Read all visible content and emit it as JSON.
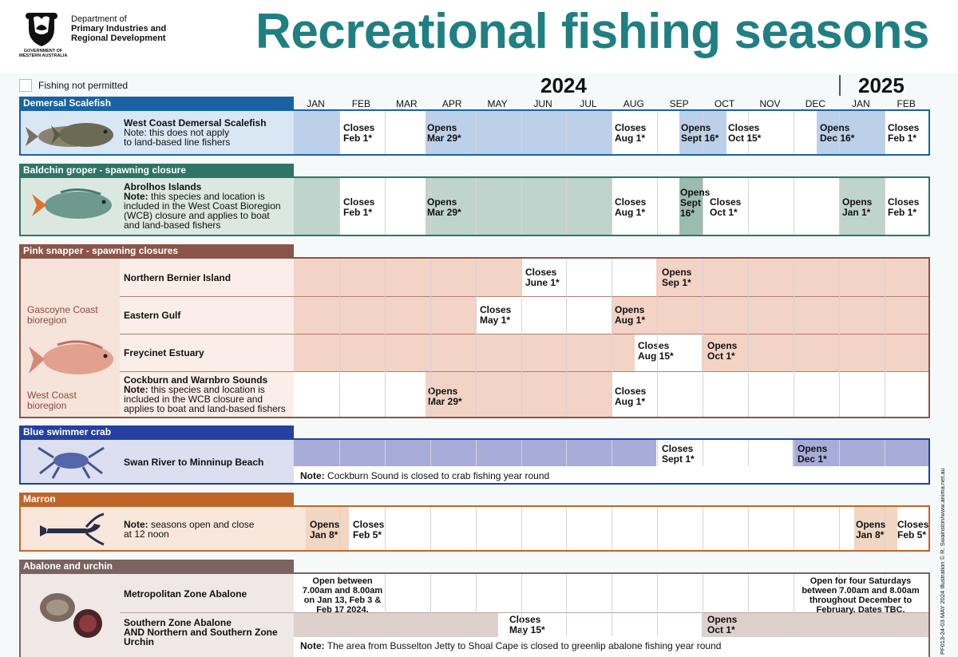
{
  "header": {
    "dept_line1": "Department of",
    "dept_line2": "Primary Industries and",
    "dept_line3": "Regional Development",
    "gov_line1": "GOVERNMENT OF",
    "gov_line2": "WESTERN AUSTRALIA",
    "title": "Recreational fishing seasons"
  },
  "legend": {
    "label": "Fishing not permitted"
  },
  "years": {
    "y1": "2024",
    "y2": "2025"
  },
  "months": [
    "JAN",
    "FEB",
    "MAR",
    "APR",
    "MAY",
    "JUN",
    "JUL",
    "AUG",
    "SEP",
    "OCT",
    "NOV",
    "DEC",
    "JAN",
    "FEB"
  ],
  "sections": {
    "demersal": {
      "title": "Demersal Scalefish",
      "color": "#1a62a3",
      "row_name": "West Coast Demersal Scalefish",
      "row_note1": "Note: this does not apply",
      "row_note2": "to land-based line fishers",
      "a1": "Closes\nFeb 1*",
      "a2": "Opens\nMar 29*",
      "a3": "Closes\nAug 1*",
      "a4": "Opens\nSept 16*",
      "a5": "Closes\nOct 15*",
      "a6": "Opens\nDec 16*",
      "a7": "Closes\nFeb 1*"
    },
    "baldchin": {
      "title": "Baldchin groper - spawning closure",
      "color": "#2e7565",
      "row_name": "Abrolhos Islands",
      "note_bold": "Note:",
      "note_rest": " this species and location is",
      "note_l2": "included in the West Coast Bioregion",
      "note_l3": "(WCB) closure and applies to boat",
      "note_l4": "and land-based fishers",
      "a1": "Closes\nFeb 1*",
      "a2": "Opens\nMar 29*",
      "a3": "Closes\nAug 1*",
      "a4": "Opens\nSept\n16*",
      "a5": "Closes\nOct 1*",
      "a6": "Opens\nJan 1*",
      "a7": "Closes\nFeb 1*"
    },
    "snapper": {
      "title": "Pink snapper - spawning closures",
      "color": "#8a5548",
      "group1": "Gascoyne Coast\nbioregion",
      "group2": "West Coast\nbioregion",
      "r1": "Northern Bernier Island",
      "r1a1": "Closes\nJune 1*",
      "r1a2": "Opens\nSep 1*",
      "r2": "Eastern Gulf",
      "r2a1": "Closes\nMay 1*",
      "r2a2": "Opens\nAug 1*",
      "r3": "Freycinet Estuary",
      "r3a1": "Closes\nAug 15*",
      "r3a2": "Opens\nOct 1*",
      "r4": "Cockburn and Warnbro Sounds",
      "r4_note_bold": "Note:",
      "r4_note_rest": " this species and location is",
      "r4_l2": "included in the WCB closure and",
      "r4_l3": "applies to boat and land-based fishers",
      "r4a1": "Opens\nMar 29*",
      "r4a2": "Closes\nAug 1*"
    },
    "crab": {
      "title": "Blue swimmer crab",
      "color": "#2540a0",
      "row_name": "Swan River to Minninup Beach",
      "a1": "Closes\nSept 1*",
      "a2": "Opens\nDec 1*",
      "note_bold": "Note:",
      "note_rest": " Cockburn Sound is closed to crab fishing year round"
    },
    "marron": {
      "title": "Marron",
      "color": "#c0652a",
      "note_bold": "Note:",
      "note_rest": " seasons open and close",
      "note_l2": "at 12 noon",
      "a1": "Opens\nJan 8*",
      "a2": "Closes\nFeb 5*",
      "a3": "Opens\nJan 8*",
      "a4": "Closes\nFeb 5*"
    },
    "abalone": {
      "title": "Abalone and urchin",
      "color": "#7a6360",
      "r1": "Metropolitan Zone Abalone",
      "r1a1": "Open between\n7.00am and 8.00am\non Jan 13, Feb 3 &\nFeb 17 2024.",
      "r1a2": "Open for four Saturdays\nbetween 7.00am and 8.00am\nthroughout December to\nFebruary. Dates TBC.",
      "r2_l1": "Southern Zone Abalone",
      "r2_l2": "AND Northern and Southern Zone",
      "r2_l3": "Urchin",
      "r2a1": "Closes\nMay 15*",
      "r2a2": "Opens\nOct 1*",
      "note_bold": "Note:",
      "note_rest": " The area from Busselton Jetty to Shoal Cape is closed to greenlip abalone fishing year round"
    }
  },
  "side_text": "PF013-24-03  MAY 2024  Illustration © R. Swainston/www.anima.net.au"
}
